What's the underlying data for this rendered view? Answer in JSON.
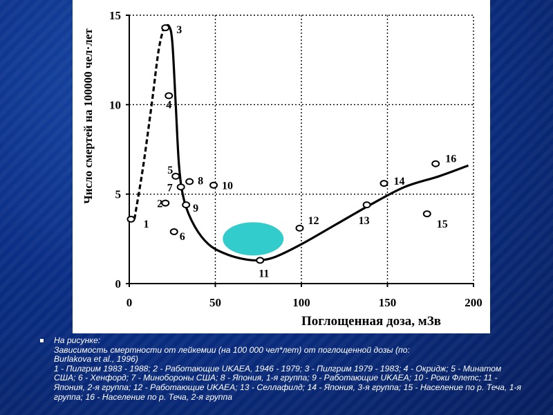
{
  "caption": {
    "line1": "На рисунке:",
    "line2": "Зависимость смертности от лейкемии (на 100 000 чел*лет) от поглощенной дозы (по:",
    "line3": "Burlakova et al., 1996)",
    "legend_text": "1 - Пилгрим 1983 - 1988; 2 - Работающие UKAEA, 1946 - 1979; 3 - Пилгрим 1979 - 1983; 4 - Окридж; 5 - Минатом США; 6 - Хенфорд; 7 - Минобороны США; 8 - Япония, 1-я группа; 9 - Работающие UKAEA; 10 - Роки Флетс; 11 - Япония, 2-я группа; 12 - Работающие UKAEA; 13 - Селлафилд; 14 - Япония, 3-я группа; 15 - Население по р. Теча, 1-я группа; 16 - Население по р. Теча, 2-я группа"
  },
  "chart_data": {
    "type": "scatter",
    "xlabel": "Поглощенная доза, мЗв",
    "ylabel": "Число смертей на 100000 чел·лет",
    "xlim": [
      0,
      200
    ],
    "ylim": [
      0,
      15
    ],
    "xticks": [
      0,
      50,
      100,
      150,
      200
    ],
    "yticks": [
      0,
      5,
      10,
      15
    ],
    "grid": true,
    "points": [
      {
        "label": "1",
        "x": 1,
        "y": 3.6
      },
      {
        "label": "2",
        "x": 21,
        "y": 4.5
      },
      {
        "label": "3",
        "x": 21,
        "y": 14.3
      },
      {
        "label": "4",
        "x": 23,
        "y": 10.5
      },
      {
        "label": "5",
        "x": 27,
        "y": 6.0
      },
      {
        "label": "6",
        "x": 26,
        "y": 2.9
      },
      {
        "label": "7",
        "x": 30,
        "y": 5.4
      },
      {
        "label": "8",
        "x": 35,
        "y": 5.7
      },
      {
        "label": "9",
        "x": 33,
        "y": 4.4
      },
      {
        "label": "10",
        "x": 49,
        "y": 5.5
      },
      {
        "label": "11",
        "x": 76,
        "y": 1.3
      },
      {
        "label": "12",
        "x": 99,
        "y": 3.1
      },
      {
        "label": "13",
        "x": 138,
        "y": 4.4
      },
      {
        "label": "14",
        "x": 148,
        "y": 5.6
      },
      {
        "label": "15",
        "x": 173,
        "y": 3.9
      },
      {
        "label": "16",
        "x": 178,
        "y": 6.7
      }
    ],
    "dashed_curve": [
      [
        3,
        3.6
      ],
      [
        8,
        6.5
      ],
      [
        13,
        10
      ],
      [
        17,
        13
      ],
      [
        20,
        14.3
      ]
    ],
    "solid_curve": [
      [
        20,
        14.3
      ],
      [
        23,
        14.4
      ],
      [
        25,
        13.5
      ],
      [
        27,
        10
      ],
      [
        29,
        6.5
      ],
      [
        32,
        4.6
      ],
      [
        38,
        3.2
      ],
      [
        46,
        2.2
      ],
      [
        55,
        1.7
      ],
      [
        65,
        1.4
      ],
      [
        75,
        1.3
      ],
      [
        85,
        1.5
      ],
      [
        100,
        2.2
      ],
      [
        120,
        3.3
      ],
      [
        140,
        4.4
      ],
      [
        160,
        5.4
      ],
      [
        180,
        6.0
      ],
      [
        197,
        6.6
      ]
    ],
    "highlight": {
      "x": 72,
      "y": 2.5,
      "color": "#33cccc"
    },
    "colors": {
      "line": "#000000",
      "grid": "#000000",
      "highlight": "#33cccc"
    }
  }
}
